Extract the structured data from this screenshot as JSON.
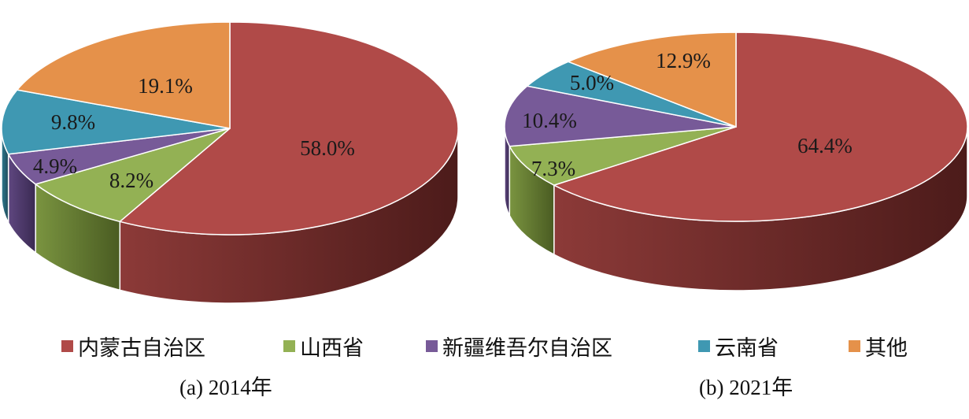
{
  "chart_data": [
    {
      "type": "pie",
      "caption": "(a) 2014年",
      "categories": [
        "内蒙古自治区",
        "山西省",
        "新疆维吾尔自治区",
        "云南省",
        "其他"
      ],
      "values": [
        58.0,
        8.2,
        4.9,
        9.8,
        19.1
      ],
      "labels": [
        "58.0%",
        "8.2%",
        "4.9%",
        "9.8%",
        "19.1%"
      ]
    },
    {
      "type": "pie",
      "caption": "(b) 2021年",
      "categories": [
        "内蒙古自治区",
        "山西省",
        "新疆维吾尔自治区",
        "云南省",
        "其他"
      ],
      "values": [
        64.4,
        7.3,
        10.4,
        5.0,
        12.9
      ],
      "labels": [
        "64.4%",
        "7.3%",
        "10.4%",
        "5.0%",
        "12.9%"
      ]
    }
  ],
  "legend": [
    {
      "label": "内蒙古自治区",
      "color": "#b04a48"
    },
    {
      "label": "山西省",
      "color": "#93b154"
    },
    {
      "label": "新疆维吾尔自治区",
      "color": "#775a98"
    },
    {
      "label": "云南省",
      "color": "#3f98b2"
    },
    {
      "label": "其他",
      "color": "#e5914a"
    }
  ],
  "colors": {
    "side_dark": [
      "#4c1b1a",
      "#4a5c22",
      "#3a2a52",
      "#1d4a59",
      "#7a4a1f"
    ],
    "side_light": [
      "#8c3a38",
      "#7a9440",
      "#5f4780",
      "#2f7a90",
      "#c0743a"
    ]
  }
}
